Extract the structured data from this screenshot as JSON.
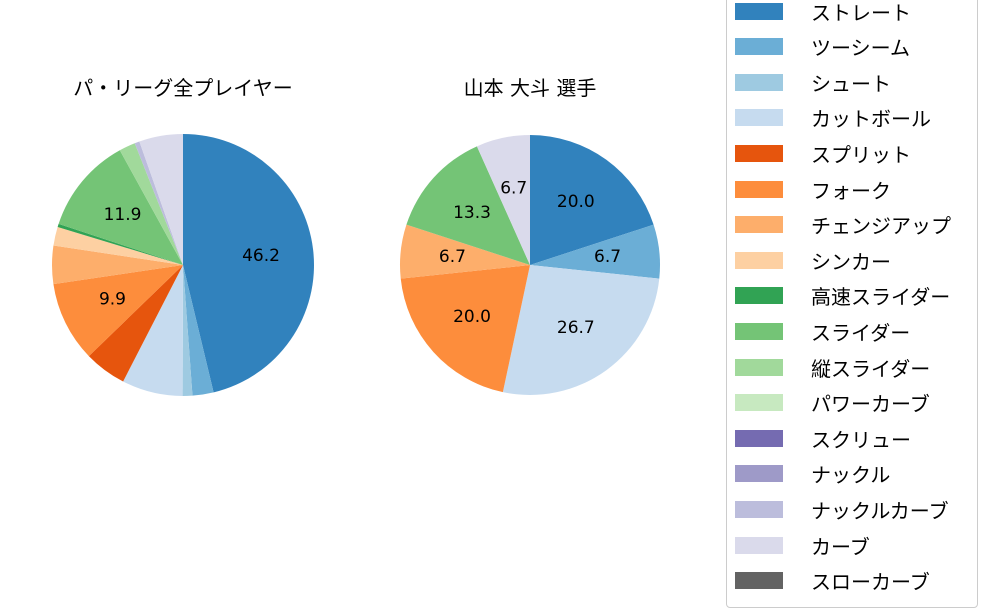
{
  "chart_data": [
    {
      "type": "pie",
      "title": "パ・リーグ全プレイヤー",
      "center": [
        183,
        265
      ],
      "radius": 131,
      "slices": [
        {
          "label": "ストレート",
          "value": 46.2,
          "color": "#3182bd",
          "show_label": true
        },
        {
          "label": "ツーシーム",
          "value": 2.6,
          "color": "#6baed6",
          "show_label": false
        },
        {
          "label": "シュート",
          "value": 1.2,
          "color": "#9ecae1",
          "show_label": false
        },
        {
          "label": "カットボール",
          "value": 7.5,
          "color": "#c6dbef",
          "show_label": false
        },
        {
          "label": "スプリット",
          "value": 5.2,
          "color": "#e6550d",
          "show_label": false
        },
        {
          "label": "フォーク",
          "value": 9.9,
          "color": "#fd8d3c",
          "show_label": true
        },
        {
          "label": "チェンジアップ",
          "value": 4.7,
          "color": "#fdae6b",
          "show_label": false
        },
        {
          "label": "シンカー",
          "value": 2.3,
          "color": "#fdd0a2",
          "show_label": false
        },
        {
          "label": "高速スライダー",
          "value": 0.4,
          "color": "#31a354",
          "show_label": false
        },
        {
          "label": "スライダー",
          "value": 11.9,
          "color": "#74c476",
          "show_label": true
        },
        {
          "label": "縦スライダー",
          "value": 2.0,
          "color": "#a1d99b",
          "show_label": false
        },
        {
          "label": "ナックルカーブ",
          "value": 0.6,
          "color": "#bcbddc",
          "show_label": false
        },
        {
          "label": "カーブ",
          "value": 5.4,
          "color": "#dadaeb",
          "show_label": false
        }
      ]
    },
    {
      "type": "pie",
      "title": "山本 大斗  選手",
      "center": [
        530,
        265
      ],
      "radius": 130,
      "slices": [
        {
          "label": "ストレート",
          "value": 20.0,
          "color": "#3182bd",
          "show_label": true
        },
        {
          "label": "ツーシーム",
          "value": 6.7,
          "color": "#6baed6",
          "show_label": true
        },
        {
          "label": "カットボール",
          "value": 26.7,
          "color": "#c6dbef",
          "show_label": true
        },
        {
          "label": "フォーク",
          "value": 20.0,
          "color": "#fd8d3c",
          "show_label": true
        },
        {
          "label": "チェンジアップ",
          "value": 6.7,
          "color": "#fdae6b",
          "show_label": true
        },
        {
          "label": "スライダー",
          "value": 13.3,
          "color": "#74c476",
          "show_label": true
        },
        {
          "label": "カーブ",
          "value": 6.7,
          "color": "#dadaeb",
          "show_label": true
        }
      ]
    }
  ],
  "titles": {
    "left": "パ・リーグ全プレイヤー",
    "right": "山本 大斗  選手"
  },
  "legend": {
    "items": [
      {
        "label": "ストレート",
        "color": "#3182bd"
      },
      {
        "label": "ツーシーム",
        "color": "#6baed6"
      },
      {
        "label": "シュート",
        "color": "#9ecae1"
      },
      {
        "label": "カットボール",
        "color": "#c6dbef"
      },
      {
        "label": "スプリット",
        "color": "#e6550d"
      },
      {
        "label": "フォーク",
        "color": "#fd8d3c"
      },
      {
        "label": "チェンジアップ",
        "color": "#fdae6b"
      },
      {
        "label": "シンカー",
        "color": "#fdd0a2"
      },
      {
        "label": "高速スライダー",
        "color": "#31a354"
      },
      {
        "label": "スライダー",
        "color": "#74c476"
      },
      {
        "label": "縦スライダー",
        "color": "#a1d99b"
      },
      {
        "label": "パワーカーブ",
        "color": "#c7e9c0"
      },
      {
        "label": "スクリュー",
        "color": "#756bb1"
      },
      {
        "label": "ナックル",
        "color": "#9e9ac8"
      },
      {
        "label": "ナックルカーブ",
        "color": "#bcbddc"
      },
      {
        "label": "カーブ",
        "color": "#dadaeb"
      },
      {
        "label": "スローカーブ",
        "color": "#636363"
      }
    ]
  }
}
